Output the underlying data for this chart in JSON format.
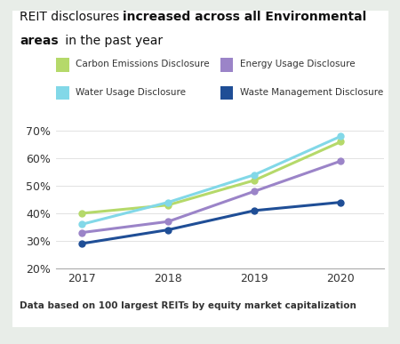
{
  "years": [
    2017,
    2018,
    2019,
    2020
  ],
  "series": {
    "Carbon Emissions Disclosure": [
      40,
      43,
      52,
      66
    ],
    "Energy Usage Disclosure": [
      33,
      37,
      48,
      59
    ],
    "Water Usage Disclosure": [
      36,
      44,
      54,
      68
    ],
    "Waste Management Disclosure": [
      29,
      34,
      41,
      44
    ]
  },
  "colors": {
    "Carbon Emissions Disclosure": "#b5d96a",
    "Energy Usage Disclosure": "#9b84c8",
    "Water Usage Disclosure": "#82d8e8",
    "Waste Management Disclosure": "#1f4e96"
  },
  "ylim": [
    20,
    75
  ],
  "yticks": [
    20,
    30,
    40,
    50,
    60,
    70
  ],
  "ytick_labels": [
    "20%",
    "30%",
    "40%",
    "50%",
    "60%",
    "70%"
  ],
  "background_color": "#ffffff",
  "outer_background": "#e8ede8",
  "title_normal": "REIT disclosures ",
  "title_bold": "increased across all Environmental areas",
  "title_normal2": " in the past year",
  "footnote": "Data based on 100 largest REITs by equity market capitalization"
}
